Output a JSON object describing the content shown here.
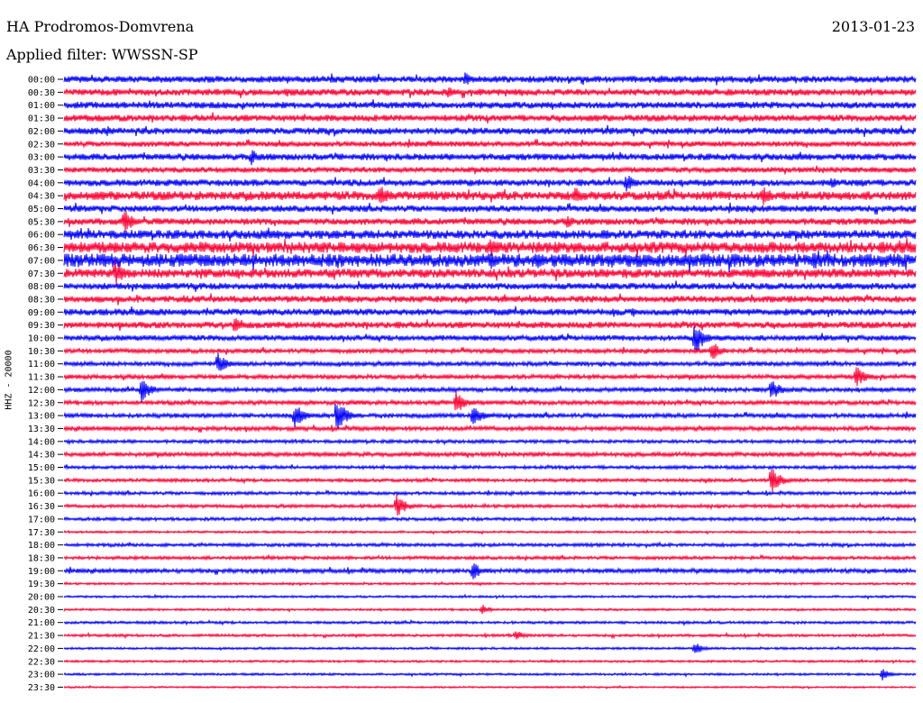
{
  "header": {
    "station": "HA Prodromos-Domvrena",
    "date": "2013-01-23",
    "filter": "Applied filter: WWSSN-SP"
  },
  "chart_data": {
    "type": "line",
    "channel_label": "HHZ - 20000",
    "colors": {
      "even_row": "#0000ff",
      "odd_row": "#ff0033"
    },
    "rows": [
      "00:00",
      "00:30",
      "01:00",
      "01:30",
      "02:00",
      "02:30",
      "03:00",
      "03:30",
      "04:00",
      "04:30",
      "05:00",
      "05:30",
      "06:00",
      "06:30",
      "07:00",
      "07:30",
      "08:00",
      "08:30",
      "09:00",
      "09:30",
      "10:00",
      "10:30",
      "11:00",
      "11:30",
      "12:00",
      "12:30",
      "13:00",
      "13:30",
      "14:00",
      "14:30",
      "15:00",
      "15:30",
      "16:00",
      "16:30",
      "17:00",
      "17:30",
      "18:00",
      "18:30",
      "19:00",
      "19:30",
      "20:00",
      "20:30",
      "21:00",
      "21:30",
      "22:00",
      "22:30",
      "23:00",
      "23:30"
    ],
    "noise_level": [
      3,
      3,
      3,
      3,
      3,
      2.5,
      3,
      2.5,
      3,
      4,
      3,
      3,
      4,
      5,
      6,
      4,
      3,
      3,
      3,
      3,
      2.5,
      2,
      2,
      2,
      2,
      2,
      2,
      2,
      1.5,
      2,
      1.5,
      1.5,
      1.5,
      1.5,
      1.5,
      1,
      1.5,
      1.5,
      2,
      1,
      1,
      1,
      1.2,
      1.2,
      1,
      1,
      1,
      0.8
    ],
    "events": [
      {
        "row": 0,
        "t": 0.47,
        "amp": 8
      },
      {
        "row": 1,
        "t": 0.45,
        "amp": 7
      },
      {
        "row": 4,
        "t": 0.05,
        "amp": 6
      },
      {
        "row": 5,
        "t": 0.43,
        "amp": 6
      },
      {
        "row": 6,
        "t": 0.22,
        "amp": 9
      },
      {
        "row": 8,
        "t": 0.66,
        "amp": 10
      },
      {
        "row": 8,
        "t": 0.9,
        "amp": 7
      },
      {
        "row": 9,
        "t": 0.37,
        "amp": 14
      },
      {
        "row": 9,
        "t": 0.6,
        "amp": 10
      },
      {
        "row": 9,
        "t": 0.82,
        "amp": 12
      },
      {
        "row": 11,
        "t": 0.07,
        "amp": 14
      },
      {
        "row": 11,
        "t": 0.59,
        "amp": 8
      },
      {
        "row": 13,
        "t": 0.5,
        "amp": 10
      },
      {
        "row": 13,
        "t": 0.98,
        "amp": 10
      },
      {
        "row": 14,
        "t": 0.5,
        "amp": 10
      },
      {
        "row": 14,
        "t": 0.88,
        "amp": 12
      },
      {
        "row": 15,
        "t": 0.06,
        "amp": 14
      },
      {
        "row": 19,
        "t": 0.2,
        "amp": 12
      },
      {
        "row": 20,
        "t": 0.74,
        "amp": 20
      },
      {
        "row": 21,
        "t": 0.76,
        "amp": 12
      },
      {
        "row": 22,
        "t": 0.18,
        "amp": 13
      },
      {
        "row": 23,
        "t": 0.93,
        "amp": 12
      },
      {
        "row": 24,
        "t": 0.09,
        "amp": 16
      },
      {
        "row": 24,
        "t": 0.83,
        "amp": 14
      },
      {
        "row": 25,
        "t": 0.46,
        "amp": 14
      },
      {
        "row": 26,
        "t": 0.27,
        "amp": 15
      },
      {
        "row": 26,
        "t": 0.32,
        "amp": 20
      },
      {
        "row": 26,
        "t": 0.48,
        "amp": 13
      },
      {
        "row": 31,
        "t": 0.83,
        "amp": 16
      },
      {
        "row": 33,
        "t": 0.39,
        "amp": 14
      },
      {
        "row": 38,
        "t": 0.48,
        "amp": 10
      },
      {
        "row": 41,
        "t": 0.49,
        "amp": 6
      },
      {
        "row": 43,
        "t": 0.53,
        "amp": 6
      },
      {
        "row": 44,
        "t": 0.74,
        "amp": 7
      },
      {
        "row": 46,
        "t": 0.96,
        "amp": 7
      }
    ]
  }
}
